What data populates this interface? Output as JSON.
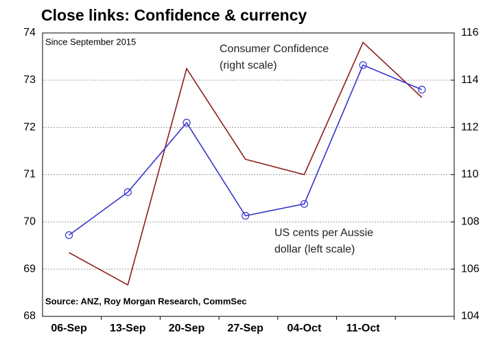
{
  "chart_data": {
    "type": "line",
    "title": "Close links: Confidence & currency",
    "subtitle": "Since September 2015",
    "source": "Source: ANZ, Roy Morgan Research, CommSec",
    "categories": [
      "06-Sep",
      "13-Sep",
      "20-Sep",
      "27-Sep",
      "04-Oct",
      "11-Oct",
      null
    ],
    "ylim": [
      68,
      74
    ],
    "yticks": [
      68,
      69,
      70,
      71,
      72,
      73,
      74
    ],
    "y2lim": [
      104,
      116
    ],
    "y2ticks": [
      104,
      106,
      108,
      110,
      112,
      114,
      116
    ],
    "grid": true,
    "series": [
      {
        "label_lines": [
          "Consumer Confidence",
          "(right scale)"
        ],
        "color": "#8b1a1a",
        "axis": "y2",
        "markers": false,
        "values": [
          106.7,
          105.33,
          114.49,
          110.65,
          110.0,
          115.6,
          113.27
        ]
      },
      {
        "label_lines": [
          "US cents per Aussie",
          "dollar (left scale)"
        ],
        "color": "#3333cc",
        "axis": "y",
        "markers": true,
        "values": [
          69.72,
          70.63,
          72.1,
          70.13,
          70.38,
          73.32,
          72.8
        ]
      }
    ]
  }
}
